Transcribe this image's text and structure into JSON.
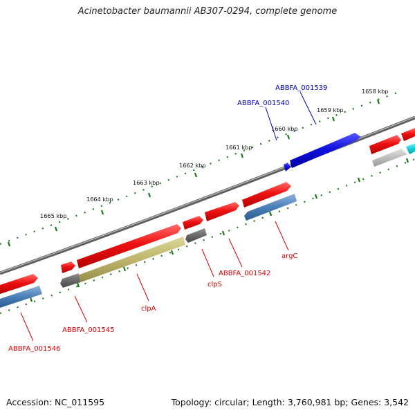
{
  "title": "Acinetobacter baumannii AB307-0294, complete genome",
  "footer": {
    "accession": "Accession: NC_011595",
    "stats": "Topology: circular; Length: 3,760,981 bp; Genes: 3,542"
  },
  "ticks": [
    {
      "label": "1658 kbp"
    },
    {
      "label": "1659 kbp"
    },
    {
      "label": "1660 kbp"
    },
    {
      "label": "1661 kbp"
    },
    {
      "label": "1662 kbp"
    },
    {
      "label": "1663 kbp"
    },
    {
      "label": "1664 kbp"
    },
    {
      "label": "1665 kbp"
    }
  ],
  "gene_labels": [
    {
      "text": "ABBFA_001539",
      "color": "#0000b8"
    },
    {
      "text": "ABBFA_001540",
      "color": "#0000b8"
    },
    {
      "text": "argC",
      "color": "#d40000"
    },
    {
      "text": "ABBFA_001542",
      "color": "#d40000"
    },
    {
      "text": "clpS",
      "color": "#d40000"
    },
    {
      "text": "clpA",
      "color": "#d40000"
    },
    {
      "text": "ABBFA_001545",
      "color": "#d40000"
    },
    {
      "text": "ABBFA_001546",
      "color": "#d40000"
    }
  ],
  "colors": {
    "gene_red": "#ee1111",
    "gene_blue": "#1010e0",
    "gene_steelblue": "#4a7fb8",
    "gene_olive": "#bdb56a",
    "gene_gray": "#6a6a6a",
    "gene_lightgray": "#bdbdbd",
    "gene_cyan": "#16d0d6",
    "backbone": "#808080",
    "tick_green": "#1a7a1a"
  }
}
